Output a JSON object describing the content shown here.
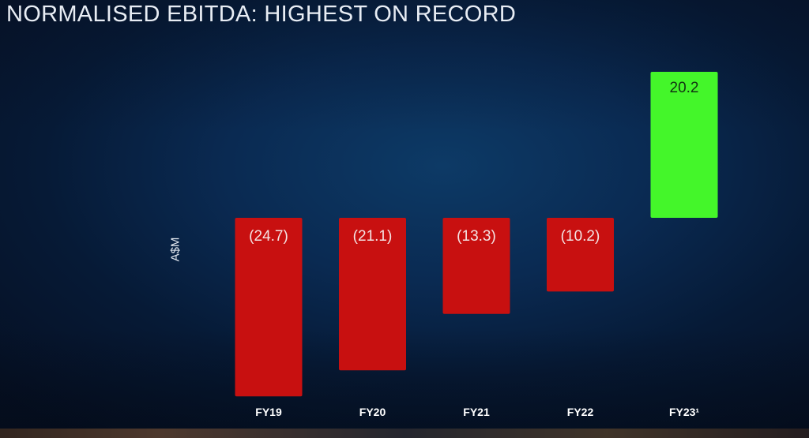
{
  "slide": {
    "title": "NORMALISED EBITDA: HIGHEST ON RECORD"
  },
  "colors": {
    "negative": "#c81010",
    "positive": "#44f62a",
    "negative_label": "#f4e4e4",
    "positive_label": "#123312"
  },
  "chart_data": {
    "type": "bar",
    "title": "NORMALISED EBITDA: HIGHEST ON RECORD",
    "xlabel": "",
    "ylabel": "A$M",
    "categories": [
      "FY19",
      "FY20",
      "FY21",
      "FY22",
      "FY23¹"
    ],
    "values": [
      -24.7,
      -21.1,
      -13.3,
      -10.2,
      20.2
    ],
    "data_labels": [
      "(24.7)",
      "(21.1)",
      "(13.3)",
      "(10.2)",
      "20.2"
    ],
    "ylim": [
      -25,
      21
    ],
    "grid": false,
    "legend": "none"
  }
}
